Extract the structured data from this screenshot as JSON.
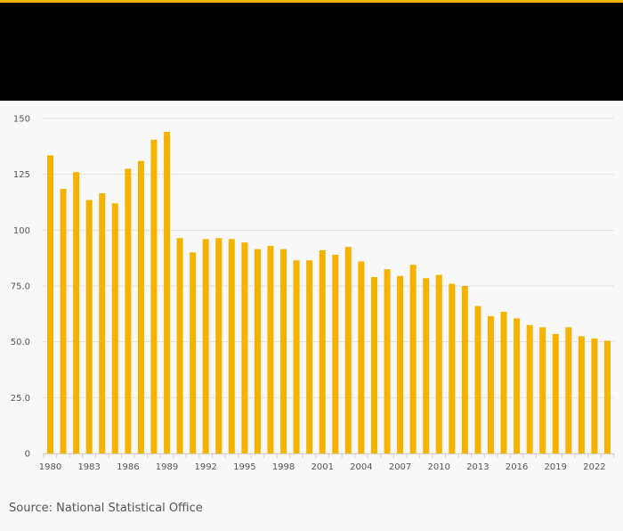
{
  "colors": {
    "accent": "#f5b300",
    "bar": "#f5b300",
    "header": "#000000",
    "background": "#f8f8f8",
    "grid": "#e2e2e2"
  },
  "chart_data": {
    "type": "bar",
    "title": "",
    "xlabel": "",
    "ylabel": "",
    "ylim": [
      0,
      150
    ],
    "yticks": [
      0,
      25,
      50,
      75,
      100,
      125,
      150
    ],
    "ytick_labels": [
      "0",
      "25.0",
      "50.0",
      "75.0",
      "100",
      "125",
      "150"
    ],
    "categories": [
      "1980",
      "1981",
      "1982",
      "1983",
      "1984",
      "1985",
      "1986",
      "1987",
      "1988",
      "1989",
      "1990",
      "1991",
      "1992",
      "1993",
      "1994",
      "1995",
      "1996",
      "1997",
      "1998",
      "1999",
      "2000",
      "2001",
      "2002",
      "2003",
      "2004",
      "2005",
      "2006",
      "2007",
      "2008",
      "2009",
      "2010",
      "2011",
      "2012",
      "2013",
      "2014",
      "2015",
      "2016",
      "2017",
      "2018",
      "2019",
      "2020",
      "2021",
      "2022",
      "2023"
    ],
    "xtick_labels": [
      "1980",
      "1983",
      "1986",
      "1989",
      "1992",
      "1995",
      "1998",
      "2001",
      "2004",
      "2007",
      "2010",
      "2013",
      "2016",
      "2019",
      "2022"
    ],
    "values": [
      133.5,
      118.5,
      126,
      113.5,
      116.5,
      112,
      127.5,
      131,
      140.5,
      144,
      96.5,
      90,
      96,
      96.5,
      96,
      94.5,
      91.5,
      93,
      91.5,
      86.5,
      86.5,
      91,
      89,
      92.5,
      86,
      79,
      82.5,
      79.5,
      84.5,
      78.5,
      80,
      76,
      75,
      66,
      61.5,
      63.5,
      60.5,
      57.5,
      56.5,
      53.5,
      56.5,
      52.5,
      51.5,
      50.5
    ]
  },
  "source": "Source: National Statistical Office"
}
